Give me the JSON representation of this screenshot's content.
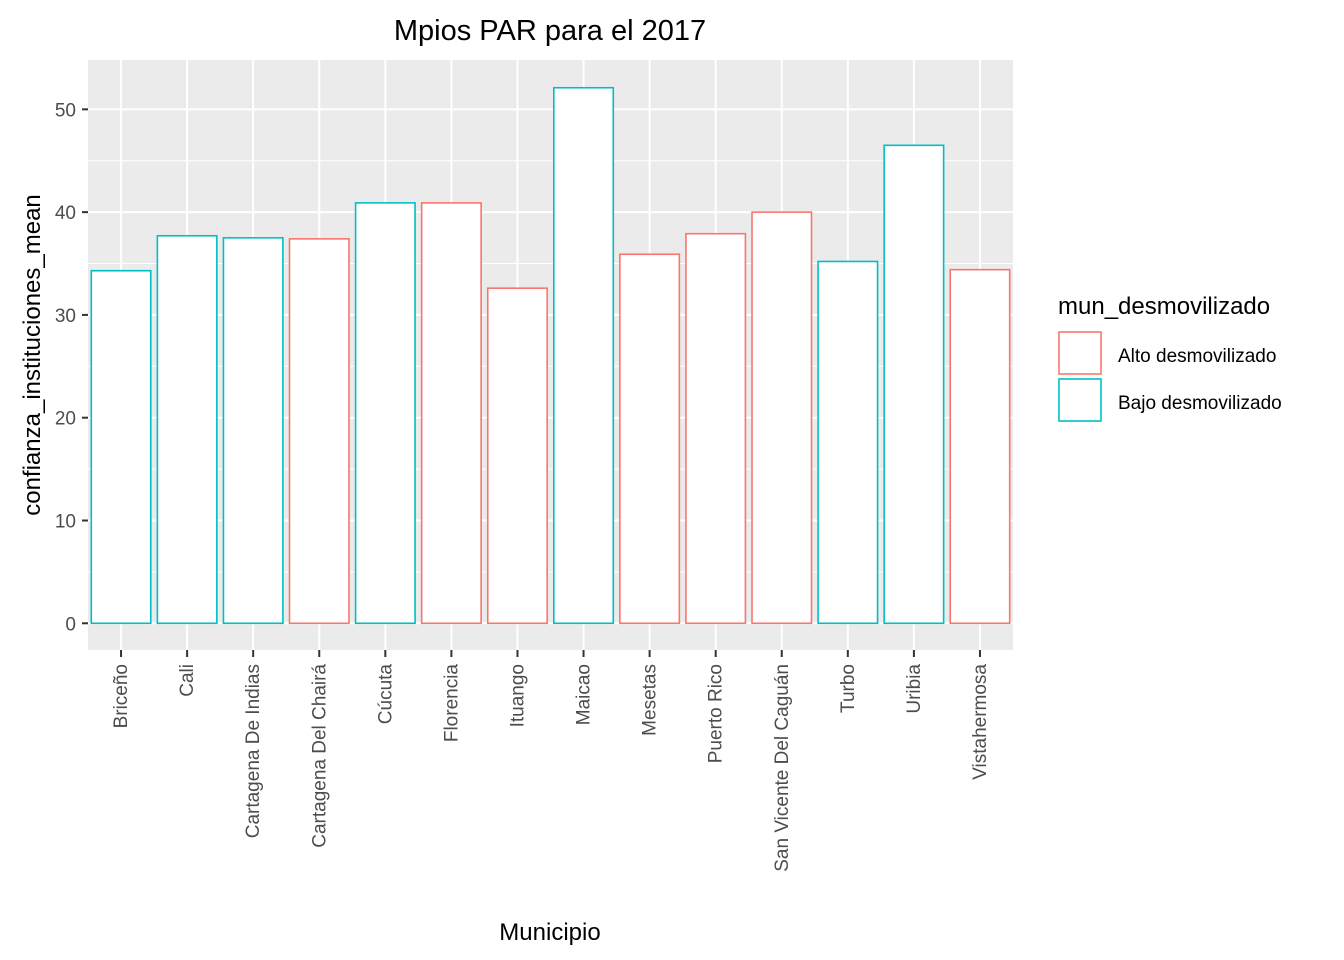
{
  "chart_data": {
    "type": "bar",
    "title": "Mpios PAR para el 2017",
    "xlabel": "Municipio",
    "ylabel": "confianza_instituciones_mean",
    "ylim": [
      -2.6,
      54.8
    ],
    "yticks": [
      0,
      10,
      20,
      30,
      40,
      50
    ],
    "categories": [
      "Briceño",
      "Cali",
      "Cartagena De Indias",
      "Cartagena Del Chairá",
      "Cúcuta",
      "Florencia",
      "Ituango",
      "Maicao",
      "Mesetas",
      "Puerto Rico",
      "San Vicente Del Caguán",
      "Turbo",
      "Uribia",
      "Vistahermosa"
    ],
    "values": [
      34.3,
      37.7,
      37.5,
      37.4,
      40.9,
      40.9,
      32.6,
      52.1,
      35.9,
      37.9,
      40.0,
      35.2,
      46.5,
      34.4
    ],
    "groups": [
      "Bajo desmovilizado",
      "Bajo desmovilizado",
      "Bajo desmovilizado",
      "Alto desmovilizado",
      "Bajo desmovilizado",
      "Alto desmovilizado",
      "Alto desmovilizado",
      "Bajo desmovilizado",
      "Alto desmovilizado",
      "Alto desmovilizado",
      "Alto desmovilizado",
      "Bajo desmovilizado",
      "Bajo desmovilizado",
      "Alto desmovilizado"
    ],
    "legend": {
      "title": "mun_desmovilizado",
      "position": "right",
      "entries": [
        {
          "label": "Alto desmovilizado",
          "color": "#f8766d"
        },
        {
          "label": "Bajo desmovilizado",
          "color": "#00bfc4"
        }
      ]
    },
    "grid": true,
    "panel_background": "#ebebeb"
  }
}
